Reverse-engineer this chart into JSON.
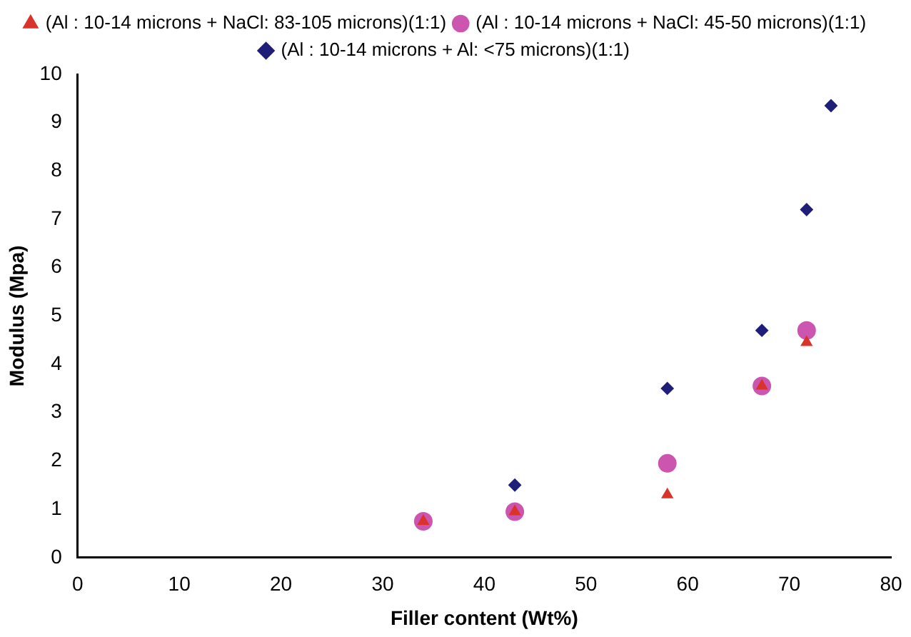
{
  "chart_data": {
    "type": "scatter",
    "xlabel": "Filler content (Wt%)",
    "ylabel": "Modulus (Mpa)",
    "xlim": [
      0,
      80
    ],
    "xticks": [
      0,
      10,
      20,
      30,
      40,
      50,
      60,
      70,
      80
    ],
    "ylim": [
      0,
      10
    ],
    "yticks": [
      0,
      1,
      2,
      3,
      4,
      5,
      6,
      7,
      8,
      9,
      10
    ],
    "grid": false,
    "legend": "top",
    "series": [
      {
        "name": "(Al : 10-14 microns + Al: <75 microns)(1:1)",
        "color": "#1f1f7a",
        "marker": "diamond",
        "x": [
          43,
          58,
          67.3,
          71.7,
          74.1
        ],
        "values": [
          1.5,
          3.5,
          4.7,
          7.2,
          9.35
        ]
      },
      {
        "name": "(Al : 10-14 microns + NaCl: 45-50 microns)(1:1)",
        "color": "#cc55b0",
        "marker": "circle",
        "x": [
          34,
          43,
          58,
          67.3,
          71.7
        ],
        "values": [
          0.75,
          0.95,
          1.95,
          3.55,
          4.7
        ]
      },
      {
        "name": "(Al : 10-14 microns + NaCl: 83-105 microns)(1:1)",
        "color": "#d9342b",
        "marker": "triangle",
        "x": [
          34,
          43,
          58,
          67.3,
          71.7
        ],
        "values": [
          0.75,
          0.95,
          1.3,
          3.55,
          4.45
        ]
      }
    ]
  }
}
